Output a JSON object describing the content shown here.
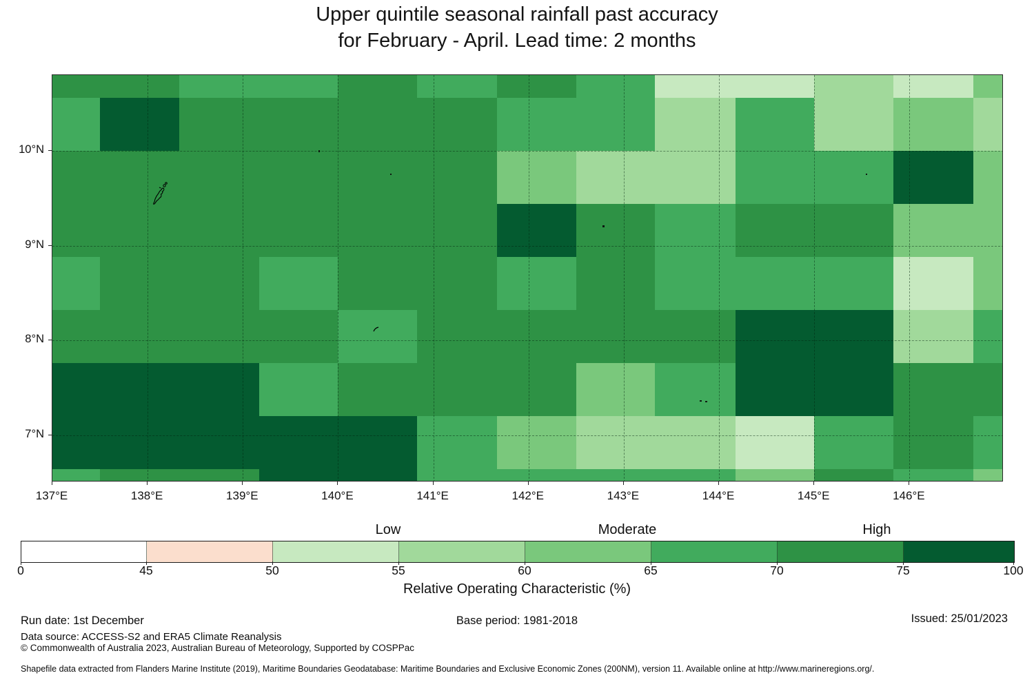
{
  "title": {
    "line1": "Upper quintile seasonal rainfall past accuracy",
    "line2": "for February - April. Lead time: 2 months"
  },
  "map": {
    "x_tick_labels": [
      "137°E",
      "138°E",
      "139°E",
      "140°E",
      "141°E",
      "142°E",
      "143°E",
      "144°E",
      "145°E",
      "146°E"
    ],
    "y_tick_labels": [
      "10°N",
      "9°N",
      "8°N",
      "7°N"
    ]
  },
  "colorbar": {
    "tick_labels": [
      "0",
      "45",
      "50",
      "55",
      "60",
      "65",
      "70",
      "75",
      "100"
    ],
    "category_labels": [
      "Low",
      "Moderate",
      "High"
    ],
    "axis_label": "Relative Operating Characteristic (%)"
  },
  "footer": {
    "run_date": "Run date: 1st December",
    "base_period": "Base period: 1981-2018",
    "issued": "Issued: 25/01/2023",
    "data_source": "Data source: ACCESS-S2 and ERA5 Climate Reanalysis",
    "copyright": "© Commonwealth of Australia 2023, Australian Bureau of Meteorology, Supported by COSPPac",
    "shapefile_note": "Shapefile data extracted from Flanders Marine Institute (2019), Maritime Boundaries Geodatabase: Maritime Boundaries and Exclusive Economic Zones (200NM), version 11. Available online at http://www.marineregions.org/."
  },
  "chart_data": {
    "type": "heatmap",
    "title": "Upper quintile seasonal rainfall past accuracy for February - April. Lead time: 2 months",
    "value_name": "Relative Operating Characteristic (%)",
    "x_ticks_lon_deg_east": [
      137,
      138,
      139,
      140,
      141,
      142,
      143,
      144,
      145,
      146
    ],
    "y_ticks_lat_deg_north": [
      10,
      9,
      8,
      7
    ],
    "lon_edges_deg_east": [
      137.0,
      137.5,
      138.33,
      139.17,
      140.0,
      140.83,
      141.67,
      142.5,
      143.33,
      144.17,
      145.0,
      145.83,
      146.67,
      147.0
    ],
    "lat_edges_deg_north": [
      10.8,
      10.56,
      10.0,
      9.44,
      8.88,
      8.32,
      7.76,
      7.2,
      6.64,
      6.5
    ],
    "values_roc_percent": [
      [
        72,
        72,
        67,
        67,
        72,
        67,
        72,
        67,
        52,
        52,
        57,
        52,
        62
      ],
      [
        67,
        85,
        72,
        72,
        72,
        72,
        67,
        67,
        57,
        67,
        57,
        62,
        57
      ],
      [
        72,
        72,
        72,
        72,
        72,
        72,
        62,
        57,
        57,
        67,
        67,
        85,
        62
      ],
      [
        72,
        72,
        72,
        72,
        72,
        72,
        85,
        72,
        67,
        72,
        72,
        62,
        62
      ],
      [
        67,
        72,
        72,
        67,
        72,
        72,
        67,
        72,
        67,
        67,
        67,
        52,
        62
      ],
      [
        72,
        72,
        72,
        72,
        67,
        72,
        72,
        72,
        72,
        85,
        85,
        57,
        67
      ],
      [
        85,
        85,
        85,
        67,
        72,
        72,
        72,
        62,
        67,
        85,
        85,
        72,
        72
      ],
      [
        85,
        85,
        85,
        85,
        85,
        67,
        62,
        57,
        57,
        52,
        67,
        72,
        67
      ],
      [
        67,
        72,
        72,
        85,
        85,
        67,
        67,
        67,
        67,
        62,
        72,
        67,
        62
      ]
    ],
    "value_bucket_ranges": {
      "52": "50-55",
      "57": "55-60",
      "62": "60-65",
      "67": "65-70",
      "72": "70-75",
      "85": "75-100"
    },
    "colormap": [
      {
        "range": [
          0,
          45
        ],
        "color": "#ffffff"
      },
      {
        "range": [
          45,
          50
        ],
        "color": "#fbdecd"
      },
      {
        "range": [
          50,
          55
        ],
        "color": "#c7e9c0"
      },
      {
        "range": [
          55,
          60
        ],
        "color": "#a1d99b"
      },
      {
        "range": [
          60,
          65
        ],
        "color": "#7ac87c"
      },
      {
        "range": [
          65,
          70
        ],
        "color": "#41ab5d"
      },
      {
        "range": [
          70,
          75
        ],
        "color": "#2e9245"
      },
      {
        "range": [
          75,
          100
        ],
        "color": "#045b30"
      }
    ],
    "colorbar_tick_values": [
      0,
      45,
      50,
      55,
      60,
      65,
      70,
      75,
      100
    ],
    "colorbar_categories": [
      {
        "label": "Low",
        "over_value": 55
      },
      {
        "label": "Moderate",
        "over_value": 65
      },
      {
        "label": "High",
        "over_value": 75
      }
    ],
    "grid": "dashed graticule at whole degrees",
    "legend_position": "horizontal colorbar below map"
  }
}
